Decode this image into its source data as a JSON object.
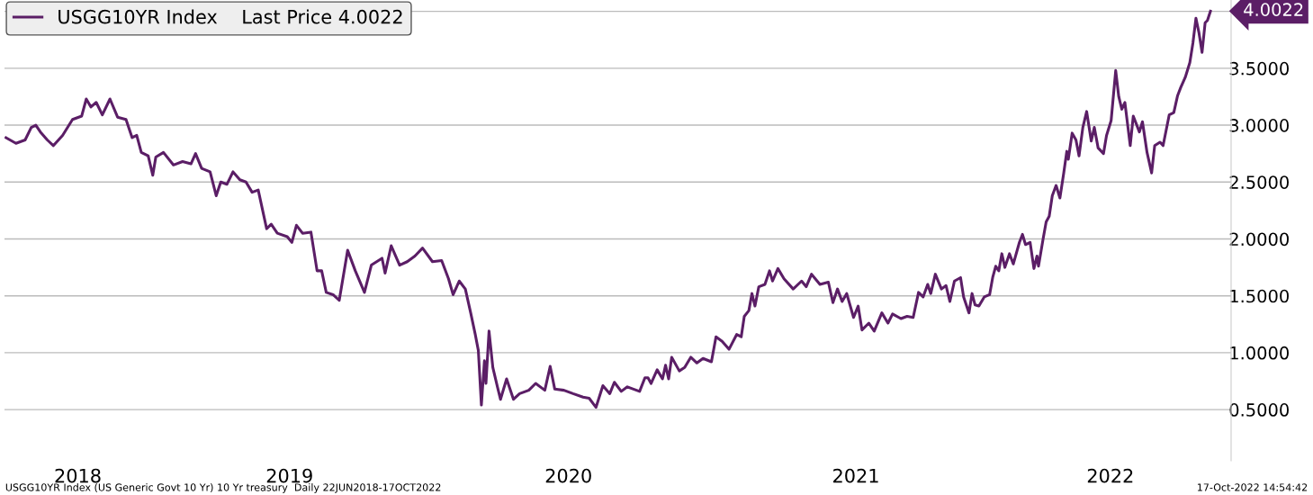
{
  "chart_data": {
    "type": "line",
    "x": [
      "2018-06-24",
      "2018-07-07",
      "2018-07-19",
      "2018-07-27",
      "2018-08-02",
      "2018-08-08",
      "2018-08-17",
      "2018-08-25",
      "2018-09-06",
      "2018-09-19",
      "2018-10-01",
      "2018-10-07",
      "2018-10-13",
      "2018-10-20",
      "2018-10-28",
      "2018-11-07",
      "2018-11-17",
      "2018-11-28",
      "2018-12-06",
      "2018-12-12",
      "2018-12-18",
      "2018-12-27",
      "2019-01-02",
      "2019-01-06",
      "2019-01-16",
      "2019-01-29",
      "2019-02-10",
      "2019-02-21",
      "2019-02-27",
      "2019-03-07",
      "2019-03-18",
      "2019-03-26",
      "2019-04-01",
      "2019-04-09",
      "2019-04-17",
      "2019-04-26",
      "2019-05-04",
      "2019-05-12",
      "2019-05-20",
      "2019-05-31",
      "2019-06-06",
      "2019-06-14",
      "2019-06-27",
      "2019-07-03",
      "2019-07-09",
      "2019-07-17",
      "2019-07-28",
      "2019-08-05",
      "2019-08-11",
      "2019-08-17",
      "2019-08-26",
      "2019-09-03",
      "2019-09-14",
      "2019-09-24",
      "2019-10-06",
      "2019-10-15",
      "2019-10-29",
      "2019-11-02",
      "2019-11-10",
      "2019-11-21",
      "2019-12-01",
      "2019-12-11",
      "2019-12-21",
      "2020-01-03",
      "2020-01-15",
      "2020-01-24",
      "2020-01-30",
      "2020-02-07",
      "2020-02-15",
      "2020-02-22",
      "2020-02-28",
      "2020-03-03",
      "2020-03-07",
      "2020-03-11",
      "2020-03-13",
      "2020-03-17",
      "2020-03-22",
      "2020-03-28",
      "2020-04-01",
      "2020-04-09",
      "2020-04-18",
      "2020-04-26",
      "2020-05-08",
      "2020-05-17",
      "2020-05-29",
      "2020-06-05",
      "2020-06-11",
      "2020-06-23",
      "2020-07-05",
      "2020-07-18",
      "2020-07-26",
      "2020-08-04",
      "2020-08-13",
      "2020-08-22",
      "2020-08-28",
      "2020-09-06",
      "2020-09-14",
      "2020-09-30",
      "2020-10-07",
      "2020-10-11",
      "2020-10-15",
      "2020-10-23",
      "2020-10-30",
      "2020-11-03",
      "2020-11-07",
      "2020-11-11",
      "2020-11-21",
      "2020-11-28",
      "2020-12-06",
      "2020-12-14",
      "2020-12-22",
      "2021-01-02",
      "2021-01-08",
      "2021-01-16",
      "2021-01-25",
      "2021-02-04",
      "2021-02-10",
      "2021-02-14",
      "2021-02-20",
      "2021-02-24",
      "2021-02-28",
      "2021-03-05",
      "2021-03-13",
      "2021-03-19",
      "2021-03-23",
      "2021-03-30",
      "2021-04-07",
      "2021-04-19",
      "2021-04-30",
      "2021-05-06",
      "2021-05-13",
      "2021-05-24",
      "2021-06-04",
      "2021-06-10",
      "2021-06-16",
      "2021-06-22",
      "2021-06-28",
      "2021-07-07",
      "2021-07-13",
      "2021-07-18",
      "2021-07-27",
      "2021-08-03",
      "2021-08-13",
      "2021-08-21",
      "2021-08-27",
      "2021-09-07",
      "2021-09-15",
      "2021-09-23",
      "2021-09-30",
      "2021-10-06",
      "2021-10-12",
      "2021-10-16",
      "2021-10-22",
      "2021-10-30",
      "2021-11-05",
      "2021-11-10",
      "2021-11-16",
      "2021-11-24",
      "2021-11-28",
      "2021-12-05",
      "2021-12-09",
      "2021-12-13",
      "2021-12-18",
      "2021-12-25",
      "2022-01-01",
      "2022-01-05",
      "2022-01-09",
      "2022-01-13",
      "2022-01-17",
      "2022-01-21",
      "2022-01-27",
      "2022-02-01",
      "2022-02-09",
      "2022-02-13",
      "2022-02-17",
      "2022-02-23",
      "2022-02-28",
      "2022-03-04",
      "2022-03-06",
      "2022-03-12",
      "2022-03-16",
      "2022-03-20",
      "2022-03-24",
      "2022-03-29",
      "2022-04-03",
      "2022-04-08",
      "2022-04-12",
      "2022-04-14",
      "2022-04-19",
      "2022-04-24",
      "2022-04-28",
      "2022-05-03",
      "2022-05-08",
      "2022-05-14",
      "2022-05-18",
      "2022-05-23",
      "2022-05-30",
      "2022-06-03",
      "2022-06-09",
      "2022-06-15",
      "2022-06-19",
      "2022-06-23",
      "2022-06-27",
      "2022-07-04",
      "2022-07-08",
      "2022-07-16",
      "2022-07-20",
      "2022-07-26",
      "2022-08-01",
      "2022-08-05",
      "2022-08-12",
      "2022-08-16",
      "2022-08-24",
      "2022-08-30",
      "2022-09-04",
      "2022-09-08",
      "2022-09-14",
      "2022-09-20",
      "2022-09-24",
      "2022-09-28",
      "2022-10-02",
      "2022-10-06",
      "2022-10-10",
      "2022-10-13",
      "2022-10-17"
    ],
    "series": [
      {
        "name": "USGG10YR Index    Last Price 4.0022",
        "color": "#5b1e66",
        "values": [
          2.89,
          2.84,
          2.87,
          2.98,
          3.0,
          2.94,
          2.87,
          2.82,
          2.91,
          3.05,
          3.08,
          3.23,
          3.16,
          3.2,
          3.09,
          3.23,
          3.07,
          3.05,
          2.89,
          2.91,
          2.76,
          2.73,
          2.56,
          2.72,
          2.76,
          2.65,
          2.68,
          2.66,
          2.75,
          2.62,
          2.59,
          2.38,
          2.5,
          2.48,
          2.59,
          2.52,
          2.5,
          2.41,
          2.43,
          2.09,
          2.13,
          2.05,
          2.02,
          1.97,
          2.12,
          2.05,
          2.06,
          1.72,
          1.72,
          1.53,
          1.51,
          1.46,
          1.9,
          1.72,
          1.53,
          1.77,
          1.83,
          1.7,
          1.94,
          1.77,
          1.8,
          1.85,
          1.92,
          1.8,
          1.81,
          1.65,
          1.51,
          1.63,
          1.56,
          1.35,
          1.16,
          1.02,
          0.54,
          0.93,
          0.73,
          1.19,
          0.87,
          0.7,
          0.59,
          0.77,
          0.59,
          0.64,
          0.67,
          0.73,
          0.67,
          0.88,
          0.68,
          0.67,
          0.64,
          0.61,
          0.6,
          0.52,
          0.71,
          0.64,
          0.74,
          0.66,
          0.7,
          0.66,
          0.78,
          0.78,
          0.73,
          0.85,
          0.77,
          0.89,
          0.77,
          0.96,
          0.84,
          0.87,
          0.96,
          0.91,
          0.95,
          0.92,
          1.14,
          1.1,
          1.03,
          1.16,
          1.14,
          1.32,
          1.37,
          1.52,
          1.41,
          1.58,
          1.6,
          1.72,
          1.63,
          1.74,
          1.65,
          1.56,
          1.63,
          1.58,
          1.69,
          1.6,
          1.62,
          1.44,
          1.56,
          1.45,
          1.52,
          1.31,
          1.41,
          1.2,
          1.26,
          1.19,
          1.35,
          1.26,
          1.34,
          1.3,
          1.32,
          1.31,
          1.53,
          1.49,
          1.6,
          1.52,
          1.69,
          1.56,
          1.59,
          1.45,
          1.63,
          1.66,
          1.49,
          1.35,
          1.52,
          1.42,
          1.41,
          1.49,
          1.51,
          1.66,
          1.76,
          1.72,
          1.87,
          1.75,
          1.87,
          1.78,
          1.97,
          2.04,
          1.95,
          1.97,
          1.74,
          1.85,
          1.76,
          2.0,
          2.15,
          2.2,
          2.38,
          2.47,
          2.36,
          2.58,
          2.77,
          2.7,
          2.93,
          2.87,
          2.73,
          2.98,
          3.12,
          2.86,
          2.98,
          2.8,
          2.75,
          2.91,
          3.04,
          3.48,
          3.25,
          3.14,
          3.2,
          2.82,
          3.08,
          2.94,
          3.03,
          2.76,
          2.58,
          2.82,
          2.85,
          2.82,
          3.09,
          3.11,
          3.26,
          3.33,
          3.42,
          3.55,
          3.72,
          3.94,
          3.81,
          3.64,
          3.9,
          3.92,
          4.0022
        ]
      }
    ],
    "xlim": [
      "2018-06-22",
      "2022-11-13"
    ],
    "xticks": [
      {
        "value": "2018-09-26",
        "label": "2018"
      },
      {
        "value": "2019-06-30",
        "label": "2019"
      },
      {
        "value": "2020-06-29",
        "label": "2020"
      },
      {
        "value": "2021-07-10",
        "label": "2021"
      },
      {
        "value": "2022-06-08",
        "label": "2022"
      }
    ],
    "ylim": [
      0.05,
      4.1
    ],
    "yticks": [
      {
        "value": 0.5,
        "label": "0.5000"
      },
      {
        "value": 1.0,
        "label": "1.0000"
      },
      {
        "value": 1.5,
        "label": "1.5000"
      },
      {
        "value": 2.0,
        "label": "2.0000"
      },
      {
        "value": 2.5,
        "label": "2.5000"
      },
      {
        "value": 3.0,
        "label": "3.0000"
      },
      {
        "value": 3.5,
        "label": "3.5000"
      },
      {
        "value": 4.0,
        "label": null
      }
    ],
    "grid": "y",
    "legend": "top left",
    "marker": "none",
    "line_style": "solid",
    "annotations": [
      {
        "text": "4.0022",
        "x": "2022-10-17",
        "y": 4.0022
      },
      "USGG10YR Index (US Generic Govt 10 Yr) 10 Yr treasury  Daily 22JUN2018-17OCT2022",
      "17-Oct-2022 14:54:42"
    ]
  }
}
